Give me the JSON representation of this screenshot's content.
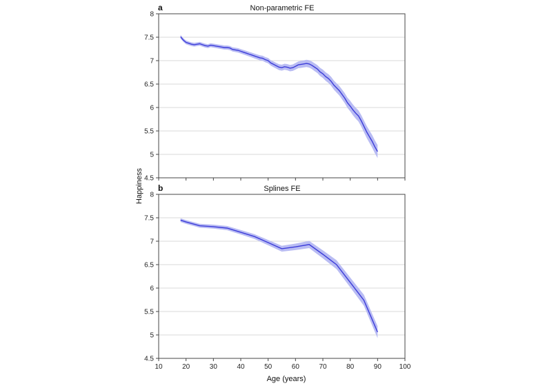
{
  "figure": {
    "ylabel": "Happiness",
    "xlabel": "Age (years)"
  },
  "chart_data": [
    {
      "type": "line",
      "letter": "a",
      "title": "Non-parametric FE",
      "xlim": [
        10,
        100
      ],
      "ylim": [
        4.5,
        8
      ],
      "xticks": [
        10,
        20,
        30,
        40,
        50,
        60,
        70,
        80,
        90,
        100
      ],
      "yticks": [
        4.5,
        5,
        5.5,
        6,
        6.5,
        7,
        7.5,
        8
      ],
      "grid": "horizontal",
      "colors": {
        "line": "#3b3bd9",
        "band": "#b9bcf3",
        "grid": "#d9d9d9"
      },
      "x": [
        18,
        19,
        20,
        21,
        22,
        23,
        24,
        25,
        26,
        27,
        28,
        29,
        30,
        31,
        32,
        33,
        34,
        35,
        36,
        37,
        38,
        39,
        40,
        41,
        42,
        43,
        44,
        45,
        46,
        47,
        48,
        49,
        50,
        51,
        52,
        53,
        54,
        55,
        56,
        57,
        58,
        59,
        60,
        61,
        62,
        63,
        64,
        65,
        66,
        67,
        68,
        69,
        70,
        71,
        72,
        73,
        74,
        75,
        76,
        77,
        78,
        79,
        80,
        81,
        82,
        83,
        84,
        85,
        86,
        87,
        88,
        89,
        90
      ],
      "y": [
        7.51,
        7.44,
        7.39,
        7.37,
        7.35,
        7.34,
        7.35,
        7.36,
        7.34,
        7.32,
        7.31,
        7.33,
        7.32,
        7.31,
        7.3,
        7.29,
        7.28,
        7.28,
        7.27,
        7.24,
        7.23,
        7.22,
        7.2,
        7.18,
        7.16,
        7.14,
        7.12,
        7.1,
        7.08,
        7.06,
        7.05,
        7.02,
        7.0,
        6.95,
        6.92,
        6.89,
        6.86,
        6.85,
        6.87,
        6.86,
        6.84,
        6.85,
        6.88,
        6.91,
        6.92,
        6.93,
        6.94,
        6.93,
        6.9,
        6.86,
        6.82,
        6.76,
        6.72,
        6.66,
        6.62,
        6.56,
        6.48,
        6.42,
        6.36,
        6.28,
        6.2,
        6.1,
        6.03,
        5.95,
        5.88,
        5.82,
        5.72,
        5.6,
        5.48,
        5.38,
        5.28,
        5.16,
        5.06
      ],
      "ci_halfwidth_start": 0.04,
      "ci_halfwidth_end": 0.14
    },
    {
      "type": "line",
      "letter": "b",
      "title": "Splines FE",
      "xlim": [
        10,
        100
      ],
      "ylim": [
        4.5,
        8
      ],
      "xticks": [
        10,
        20,
        30,
        40,
        50,
        60,
        70,
        80,
        90,
        100
      ],
      "yticks": [
        4.5,
        5,
        5.5,
        6,
        6.5,
        7,
        7.5,
        8
      ],
      "grid": "horizontal",
      "colors": {
        "line": "#3b3bd9",
        "band": "#b9bcf3",
        "grid": "#d9d9d9"
      },
      "x": [
        18,
        20,
        25,
        30,
        35,
        40,
        45,
        50,
        55,
        60,
        65,
        70,
        75,
        80,
        85,
        90
      ],
      "y": [
        7.45,
        7.41,
        7.33,
        7.31,
        7.28,
        7.19,
        7.1,
        6.97,
        6.84,
        6.88,
        6.93,
        6.72,
        6.5,
        6.12,
        5.74,
        5.06
      ],
      "ci_halfwidth_start": 0.04,
      "ci_halfwidth_end": 0.13
    }
  ]
}
